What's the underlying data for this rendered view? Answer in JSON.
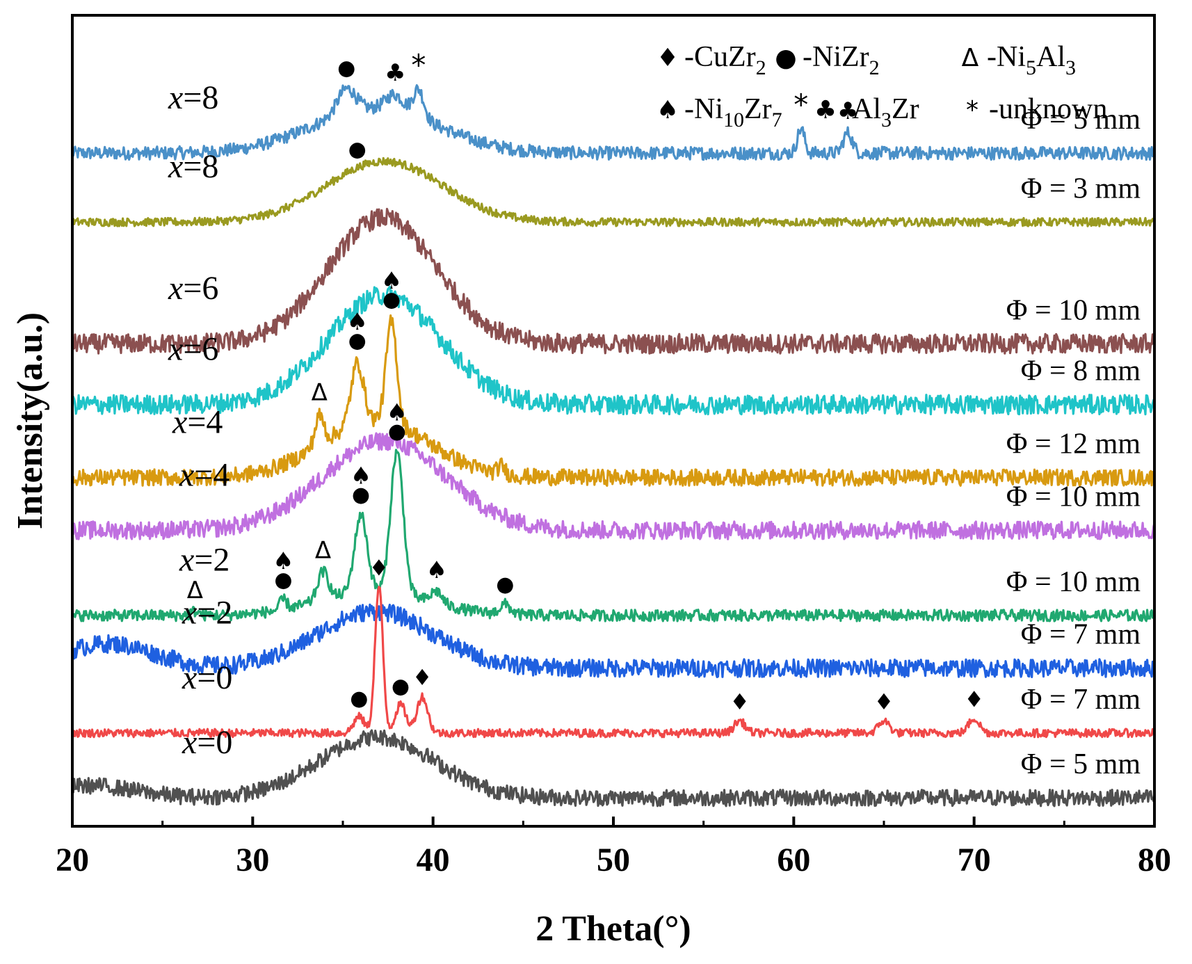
{
  "chart_data": {
    "type": "line",
    "xlabel": "2 Theta(°)",
    "ylabel": "Intensity(a.u.)",
    "xlim": [
      20,
      80
    ],
    "xticks": [
      20,
      30,
      40,
      50,
      60,
      70,
      80
    ],
    "xtick_labels": [
      "20",
      "30",
      "40",
      "50",
      "60",
      "70",
      "80"
    ],
    "grid": false,
    "legend_position": "top-right",
    "legend": [
      {
        "symbol": "♦",
        "symbol_name": "diamond",
        "prefix": "-CuZr",
        "sub": "2",
        "mid": "",
        "sub2": ""
      },
      {
        "symbol": "●",
        "symbol_name": "circle",
        "prefix": "-NiZr",
        "sub": "2",
        "mid": "",
        "sub2": ""
      },
      {
        "symbol": "Δ",
        "symbol_name": "triangle",
        "prefix": "-Ni",
        "sub": "5",
        "mid": "Al",
        "sub2": "3"
      },
      {
        "symbol": "♠",
        "symbol_name": "spade",
        "prefix": "-Ni",
        "sub": "10",
        "mid": "Zr",
        "sub2": "7"
      },
      {
        "symbol": "♣",
        "symbol_name": "club",
        "prefix": "-Al",
        "sub": "3",
        "mid": "Zr",
        "sub2": ""
      },
      {
        "symbol": "*",
        "symbol_name": "asterisk",
        "prefix": "-unknown",
        "sub": "",
        "mid": "",
        "sub2": ""
      }
    ],
    "series": [
      {
        "x_label": "x",
        "x_value": "=8",
        "diameter": "Φ = 5 mm",
        "color": "#4a90c8",
        "baseline": 0.83,
        "noise": 0.008,
        "peaks": [
          [
            36.8,
            0.055,
            3.5
          ],
          [
            35.2,
            0.03,
            0.5
          ],
          [
            37.9,
            0.02,
            0.5
          ],
          [
            39.2,
            0.035,
            0.3
          ],
          [
            60.4,
            0.03,
            0.2
          ],
          [
            63.0,
            0.025,
            0.25
          ]
        ],
        "markers": [
          {
            "x": 35.2,
            "sym": "●"
          },
          {
            "x": 37.9,
            "sym": "♣"
          },
          {
            "x": 39.2,
            "sym": "*"
          },
          {
            "x": 60.4,
            "sym": "*"
          },
          {
            "x": 63.0,
            "sym": "♣"
          }
        ]
      },
      {
        "x_label": "x",
        "x_value": "=8",
        "diameter": "Φ = 3 mm",
        "color": "#9a9a20",
        "baseline": 0.745,
        "noise": 0.005,
        "peaks": [
          [
            37.3,
            0.075,
            3.2
          ]
        ],
        "markers": [
          {
            "x": 35.8,
            "sym": "●"
          }
        ]
      },
      {
        "x_label": "x",
        "x_value": "=6",
        "diameter": "Φ = 10 mm",
        "color": "#8b5050",
        "baseline": 0.595,
        "noise": 0.012,
        "peaks": [
          [
            37.2,
            0.155,
            3.0
          ]
        ],
        "markers": []
      },
      {
        "x_label": "x",
        "x_value": "=6",
        "diameter": "Φ = 8 mm",
        "color": "#1fc4c8",
        "baseline": 0.52,
        "noise": 0.012,
        "peaks": [
          [
            37.3,
            0.135,
            3.1
          ]
        ],
        "markers": []
      },
      {
        "x_label": "x",
        "x_value": "=4",
        "diameter": "Φ = 12 mm",
        "color": "#d89a10",
        "baseline": 0.43,
        "noise": 0.01,
        "peaks": [
          [
            36.8,
            0.07,
            3.0
          ],
          [
            35.8,
            0.075,
            0.35
          ],
          [
            37.7,
            0.125,
            0.3
          ],
          [
            33.7,
            0.035,
            0.25
          ],
          [
            43.8,
            0.01,
            0.2
          ]
        ],
        "markers": [
          {
            "x": 35.8,
            "sym": "●♠"
          },
          {
            "x": 37.7,
            "sym": "●♠"
          },
          {
            "x": 33.7,
            "sym": "Δ"
          }
        ]
      },
      {
        "x_label": "x",
        "x_value": "=4",
        "diameter": "Φ = 10 mm",
        "color": "#c070e0",
        "baseline": 0.365,
        "noise": 0.011,
        "peaks": [
          [
            37.3,
            0.11,
            3.4
          ]
        ],
        "markers": []
      },
      {
        "x_label": "x",
        "x_value": "=2",
        "diameter": "Φ = 10 mm",
        "color": "#20a870",
        "baseline": 0.26,
        "noise": 0.007,
        "peaks": [
          [
            36.7,
            0.03,
            3.0
          ],
          [
            36.0,
            0.095,
            0.35
          ],
          [
            38.0,
            0.175,
            0.35
          ],
          [
            33.9,
            0.035,
            0.3
          ],
          [
            31.7,
            0.012,
            0.2
          ],
          [
            40.2,
            0.015,
            0.3
          ],
          [
            44.0,
            0.012,
            0.3
          ],
          [
            26.8,
            0.005,
            0.2
          ]
        ],
        "markers": [
          {
            "x": 36.0,
            "sym": "●♠"
          },
          {
            "x": 38.0,
            "sym": "●♠"
          },
          {
            "x": 33.9,
            "sym": "Δ"
          },
          {
            "x": 31.7,
            "sym": "●♠"
          },
          {
            "x": 40.2,
            "sym": "♠"
          },
          {
            "x": 44.0,
            "sym": "●"
          },
          {
            "x": 26.8,
            "sym": "Δ"
          }
        ]
      },
      {
        "x_label": "x",
        "x_value": "=2",
        "diameter": "Φ = 7 mm",
        "color": "#1f60e0",
        "baseline": 0.195,
        "noise": 0.011,
        "peaks": [
          [
            36.8,
            0.07,
            3.2
          ],
          [
            22.0,
            0.03,
            2.5
          ]
        ],
        "markers": []
      },
      {
        "x_label": "x",
        "x_value": "=0",
        "diameter": "Φ = 7 mm",
        "color": "#f04848",
        "baseline": 0.115,
        "noise": 0.005,
        "peaks": [
          [
            37.0,
            0.18,
            0.22
          ],
          [
            35.9,
            0.02,
            0.3
          ],
          [
            38.2,
            0.035,
            0.3
          ],
          [
            39.4,
            0.045,
            0.3
          ],
          [
            57.0,
            0.015,
            0.3
          ],
          [
            65.0,
            0.015,
            0.3
          ],
          [
            70.0,
            0.018,
            0.3
          ]
        ],
        "markers": [
          {
            "x": 37.0,
            "sym": "♦"
          },
          {
            "x": 35.9,
            "sym": "●"
          },
          {
            "x": 38.2,
            "sym": "●"
          },
          {
            "x": 39.4,
            "sym": "♦"
          },
          {
            "x": 57.0,
            "sym": "♦"
          },
          {
            "x": 65.0,
            "sym": "♦"
          },
          {
            "x": 70.0,
            "sym": "♦"
          }
        ]
      },
      {
        "x_label": "x",
        "x_value": "=0",
        "diameter": "Φ = 5 mm",
        "color": "#505050",
        "baseline": 0.035,
        "noise": 0.01,
        "peaks": [
          [
            36.9,
            0.075,
            3.2
          ],
          [
            21.0,
            0.015,
            2.5
          ]
        ],
        "markers": []
      }
    ]
  }
}
